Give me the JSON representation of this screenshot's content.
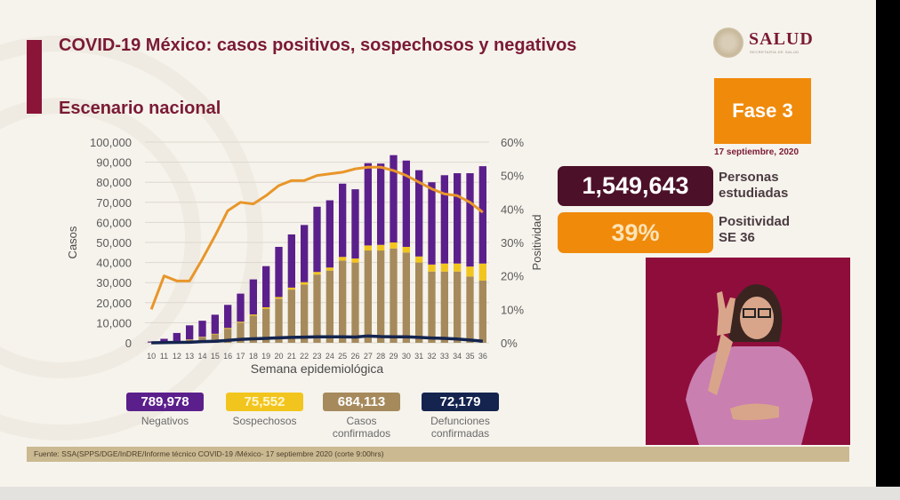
{
  "header": {
    "title": "COVID-19 México: casos positivos, sospechosos y negativos",
    "subtitle": "Escenario nacional"
  },
  "logo": {
    "name": "SALUD",
    "sub": "SECRETARÍA DE SALUD"
  },
  "phase": {
    "label": "Fase 3",
    "date": "17 septiembre, 2020"
  },
  "kpis": {
    "people_value": "1,549,643",
    "people_label_1": "Personas",
    "people_label_2": "estudiadas",
    "positivity_value": "39%",
    "positivity_label_1": "Positividad",
    "positivity_label_2": "SE 36"
  },
  "legend": [
    {
      "value": "789,978",
      "label": "Negativos",
      "color": "#5b1f8c"
    },
    {
      "value": "75,552",
      "label": "Sospechosos",
      "color": "#f2c51e"
    },
    {
      "value": "684,113",
      "label_1": "Casos",
      "label_2": "confirmados",
      "color": "#a68a5c"
    },
    {
      "value": "72,179",
      "label_1": "Defunciones",
      "label_2": "confirmadas",
      "color": "#14244f"
    }
  ],
  "source": "Fuente: SSA(SPPS/DGE/InDRE/Informe técnico COVID-19 /México- 17 septiembre 2020 (corte 9:00hrs)",
  "colors": {
    "negativos": "#5b1f8c",
    "sospechosos": "#f2c51e",
    "confirmados": "#a68a5c",
    "defunciones": "#14244f",
    "positividad": "#e8962a",
    "accent": "#8a1538"
  },
  "chart_data": {
    "type": "bar",
    "stacked": true,
    "xlabel": "Semana epidemiológica",
    "ylabel": "Casos",
    "y2label": "Positividad",
    "ylim": [
      0,
      100000
    ],
    "y2lim": [
      0,
      60
    ],
    "yticks": [
      "0",
      "10,000",
      "20,000",
      "30,000",
      "40,000",
      "50,000",
      "60,000",
      "70,000",
      "80,000",
      "90,000",
      "100,000"
    ],
    "y2ticks": [
      "0%",
      "10%",
      "20%",
      "30%",
      "40%",
      "50%",
      "60%"
    ],
    "categories": [
      "10",
      "11",
      "12",
      "13",
      "14",
      "15",
      "16",
      "17",
      "18",
      "19",
      "20",
      "21",
      "22",
      "23",
      "24",
      "25",
      "26",
      "27",
      "28",
      "29",
      "30",
      "31",
      "32",
      "33",
      "34",
      "35",
      "36"
    ],
    "series": [
      {
        "name": "Casos confirmados",
        "kind": "bar",
        "values": [
          100,
          300,
          800,
          1500,
          2800,
          4200,
          7000,
          10000,
          13500,
          17000,
          22000,
          26500,
          29000,
          34000,
          36000,
          41000,
          40000,
          46000,
          46000,
          47000,
          45000,
          40000,
          35500,
          35500,
          35500,
          33000,
          31000
        ]
      },
      {
        "name": "Sospechosos",
        "kind": "bar",
        "values": [
          50,
          100,
          100,
          200,
          200,
          300,
          400,
          500,
          600,
          700,
          800,
          1000,
          1200,
          1300,
          1500,
          1800,
          2000,
          2500,
          2800,
          3000,
          2800,
          3000,
          3500,
          4000,
          4000,
          5000,
          8500
        ]
      },
      {
        "name": "Negativos",
        "kind": "bar",
        "values": [
          500,
          1600,
          4000,
          7000,
          8000,
          9500,
          11500,
          14000,
          17500,
          20500,
          25000,
          26500,
          28500,
          32500,
          33500,
          36500,
          34500,
          41000,
          40500,
          43500,
          43000,
          43000,
          41000,
          44000,
          45000,
          46500,
          48500
        ]
      },
      {
        "name": "Defunciones confirmadas",
        "kind": "line",
        "values": [
          0,
          100,
          200,
          300,
          600,
          800,
          1200,
          1700,
          2000,
          2200,
          2500,
          2700,
          2800,
          3000,
          3000,
          3000,
          2900,
          3400,
          3100,
          3000,
          3000,
          2700,
          2400,
          2200,
          1900,
          1400,
          800
        ]
      },
      {
        "name": "Positividad",
        "kind": "line",
        "axis": "y2",
        "values": [
          10,
          20,
          18.5,
          18.5,
          25,
          32,
          39.5,
          42,
          41.5,
          44,
          47,
          48.5,
          48.5,
          50,
          50.5,
          51,
          52,
          52.5,
          52.5,
          51.5,
          50,
          48,
          46,
          44.5,
          44,
          42,
          39
        ]
      }
    ]
  }
}
